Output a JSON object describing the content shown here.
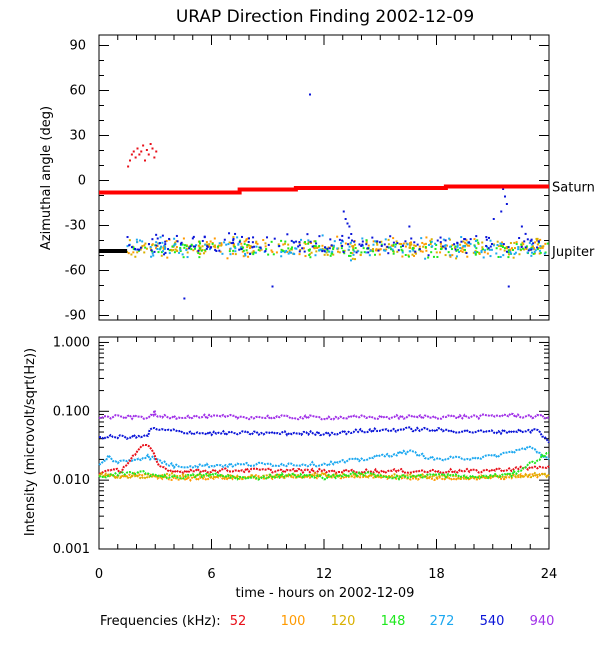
{
  "chart_data": {
    "title": "URAP Direction Finding  2002-12-09",
    "xlabel": "time - hours on 2002-12-09",
    "xlim": [
      0,
      24
    ],
    "x_ticks": [
      "0",
      "6",
      "12",
      "18",
      "24"
    ],
    "legend": {
      "label": "Frequencies (kHz):",
      "entries": [
        {
          "name": "52",
          "color": "#e8101a"
        },
        {
          "name": "100",
          "color": "#ff9a00"
        },
        {
          "name": "120",
          "color": "#d9b000"
        },
        {
          "name": "148",
          "color": "#1ee81e"
        },
        {
          "name": "272",
          "color": "#1ca8f0"
        },
        {
          "name": "540",
          "color": "#0a14d8"
        },
        {
          "name": "940",
          "color": "#a030e8"
        }
      ]
    },
    "panels": [
      {
        "type": "scatter",
        "ylabel": "Azimuthal angle (deg)",
        "ylim": [
          -93,
          97
        ],
        "yscale": "linear",
        "y_ticks": [
          {
            "value": 90,
            "label": "90"
          },
          {
            "value": 60,
            "label": "60"
          },
          {
            "value": 30,
            "label": "30"
          },
          {
            "value": 0,
            "label": "0"
          },
          {
            "value": -30,
            "label": "-30"
          },
          {
            "value": -60,
            "label": "-60"
          },
          {
            "value": -90,
            "label": "-90"
          }
        ],
        "reference_lines": [
          {
            "name": "Saturn",
            "color": "#ff0000",
            "points": [
              [
                0,
                -8
              ],
              [
                7.5,
                -8
              ],
              [
                7.5,
                -6
              ],
              [
                10.5,
                -6
              ],
              [
                10.5,
                -5
              ],
              [
                18.5,
                -5
              ],
              [
                18.5,
                -4
              ],
              [
                24,
                -4
              ]
            ]
          },
          {
            "name": "Jupiter",
            "color": "#000000",
            "points": [
              [
                0,
                -47
              ],
              [
                1.5,
                -47
              ]
            ]
          }
        ],
        "scatter_series": [
          {
            "frequency": "52",
            "color": "#e8101a",
            "points": [
              [
                1.5,
                10
              ],
              [
                1.6,
                14
              ],
              [
                1.7,
                18
              ],
              [
                1.8,
                20
              ],
              [
                1.9,
                16
              ],
              [
                2.0,
                22
              ],
              [
                2.1,
                18
              ],
              [
                2.2,
                20
              ],
              [
                2.3,
                24
              ],
              [
                2.4,
                14
              ],
              [
                2.5,
                21
              ],
              [
                2.6,
                18
              ],
              [
                2.7,
                25
              ],
              [
                2.8,
                22
              ],
              [
                2.9,
                16
              ],
              [
                3.0,
                20
              ]
            ]
          },
          {
            "frequency": "100",
            "color": "#ff9a00",
            "band": {
              "center": -44,
              "spread": 6
            }
          },
          {
            "frequency": "120",
            "color": "#d9b000",
            "band": {
              "center": -44,
              "spread": 6
            }
          },
          {
            "frequency": "148",
            "color": "#1ee81e",
            "band": {
              "center": -45,
              "spread": 5
            }
          },
          {
            "frequency": "272",
            "color": "#1ca8f0",
            "band": {
              "center": -45,
              "spread": 7
            }
          },
          {
            "frequency": "540",
            "color": "#0a14d8",
            "band": {
              "center": -42,
              "spread": 7
            },
            "points": [
              [
                4.5,
                -78
              ],
              [
                9.2,
                -70
              ],
              [
                11.2,
                58
              ],
              [
                13.0,
                -20
              ],
              [
                13.1,
                -25
              ],
              [
                13.3,
                -30
              ],
              [
                13.4,
                -35
              ],
              [
                13.2,
                -28
              ],
              [
                16.5,
                -30
              ],
              [
                16.6,
                -38
              ],
              [
                21.6,
                -10
              ],
              [
                21.7,
                -15
              ],
              [
                21.4,
                -20
              ],
              [
                21.5,
                -5
              ],
              [
                21.0,
                -25
              ],
              [
                22.5,
                -30
              ],
              [
                21.8,
                -70
              ]
            ]
          }
        ]
      },
      {
        "type": "line",
        "ylabel": "Intensity (microvolt/sqrt(Hz))",
        "ylim": [
          0.001,
          1.2
        ],
        "yscale": "log",
        "y_ticks": [
          {
            "value": 1.0,
            "label": "1.000"
          },
          {
            "value": 0.1,
            "label": "0.100"
          },
          {
            "value": 0.01,
            "label": "0.010"
          },
          {
            "value": 0.001,
            "label": "0.001"
          }
        ],
        "series": [
          {
            "frequency": "940",
            "color": "#a030e8",
            "level": 0.082,
            "points": [
              [
                0,
                0.082
              ],
              [
                2.9,
                0.083
              ],
              [
                2.95,
                0.11
              ],
              [
                3.0,
                0.084
              ],
              [
                12,
                0.081
              ],
              [
                20.5,
                0.084
              ],
              [
                21.7,
                0.088
              ],
              [
                24,
                0.082
              ]
            ]
          },
          {
            "frequency": "540",
            "color": "#0a14d8",
            "level": 0.042,
            "points": [
              [
                0,
                0.042
              ],
              [
                2.6,
                0.043
              ],
              [
                2.7,
                0.055
              ],
              [
                5.5,
                0.048
              ],
              [
                12.3,
                0.048
              ],
              [
                14.2,
                0.052
              ],
              [
                16.6,
                0.055
              ],
              [
                20.7,
                0.05
              ],
              [
                23.4,
                0.053
              ],
              [
                24,
                0.035
              ]
            ]
          },
          {
            "frequency": "272",
            "color": "#1ca8f0",
            "level": 0.017,
            "points": [
              [
                0,
                0.016
              ],
              [
                0.5,
                0.022
              ],
              [
                1,
                0.018
              ],
              [
                2.6,
                0.022
              ],
              [
                4,
                0.016
              ],
              [
                9,
                0.017
              ],
              [
                12,
                0.017
              ],
              [
                14,
                0.02
              ],
              [
                16.5,
                0.026
              ],
              [
                18,
                0.02
              ],
              [
                21,
                0.022
              ],
              [
                23,
                0.03
              ],
              [
                24,
                0.02
              ]
            ]
          },
          {
            "frequency": "52",
            "color": "#e8101a",
            "level": 0.0135,
            "points": [
              [
                0,
                0.013
              ],
              [
                1.2,
                0.014
              ],
              [
                1.8,
                0.022
              ],
              [
                2.4,
                0.032
              ],
              [
                2.8,
                0.028
              ],
              [
                3.2,
                0.016
              ],
              [
                4,
                0.0135
              ],
              [
                8,
                0.014
              ],
              [
                12,
                0.0135
              ],
              [
                16,
                0.0135
              ],
              [
                20,
                0.0135
              ],
              [
                23,
                0.015
              ],
              [
                24,
                0.016
              ]
            ]
          },
          {
            "frequency": "100",
            "color": "#ff9a00",
            "level": 0.011,
            "points": [
              [
                0,
                0.011
              ],
              [
                2,
                0.012
              ],
              [
                4,
                0.0105
              ],
              [
                8,
                0.011
              ],
              [
                12,
                0.0115
              ],
              [
                16,
                0.011
              ],
              [
                20,
                0.0105
              ],
              [
                24,
                0.012
              ]
            ]
          },
          {
            "frequency": "120",
            "color": "#d9b000",
            "level": 0.0115,
            "points": [
              [
                0,
                0.012
              ],
              [
                2,
                0.011
              ],
              [
                4,
                0.012
              ],
              [
                8,
                0.011
              ],
              [
                12,
                0.012
              ],
              [
                16,
                0.0115
              ],
              [
                20,
                0.011
              ],
              [
                24,
                0.012
              ]
            ]
          },
          {
            "frequency": "148",
            "color": "#1ee81e",
            "level": 0.0115,
            "points": [
              [
                0,
                0.011
              ],
              [
                2,
                0.013
              ],
              [
                4,
                0.011
              ],
              [
                6,
                0.012
              ],
              [
                8,
                0.0105
              ],
              [
                10,
                0.012
              ],
              [
                12,
                0.011
              ],
              [
                14,
                0.0125
              ],
              [
                16,
                0.011
              ],
              [
                18,
                0.012
              ],
              [
                20,
                0.011
              ],
              [
                22,
                0.012
              ],
              [
                24,
                0.025
              ]
            ]
          }
        ]
      }
    ]
  }
}
